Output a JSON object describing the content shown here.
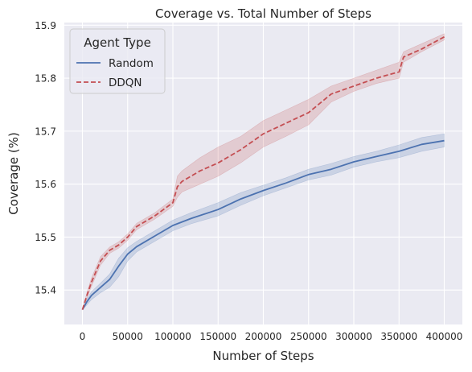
{
  "chart_data": {
    "type": "line",
    "title": "Coverage vs. Total Number of Steps",
    "xlabel": "Number of Steps",
    "ylabel": "Coverage (%)",
    "xlim": [
      -20000,
      420000
    ],
    "ylim": [
      15.335,
      15.905
    ],
    "x_ticks": [
      0,
      50000,
      100000,
      150000,
      200000,
      250000,
      300000,
      350000,
      400000
    ],
    "y_ticks": [
      15.4,
      15.5,
      15.6,
      15.7,
      15.8,
      15.9
    ],
    "grid": true,
    "legend": {
      "title": "Agent Type",
      "placement": "top-left"
    },
    "series": [
      {
        "name": "Random",
        "color": "#4c72b0",
        "linestyle": "solid",
        "x": [
          0,
          5000,
          10000,
          20000,
          30000,
          40000,
          50000,
          60000,
          80000,
          100000,
          120000,
          150000,
          175000,
          200000,
          225000,
          250000,
          275000,
          300000,
          325000,
          350000,
          375000,
          400000
        ],
        "y": [
          15.363,
          15.378,
          15.39,
          15.405,
          15.42,
          15.445,
          15.468,
          15.482,
          15.502,
          15.522,
          15.535,
          15.552,
          15.572,
          15.588,
          15.602,
          15.618,
          15.628,
          15.642,
          15.652,
          15.662,
          15.675,
          15.682
        ],
        "lower": [
          15.363,
          15.372,
          15.382,
          15.395,
          15.405,
          15.425,
          15.455,
          15.472,
          15.492,
          15.512,
          15.525,
          15.54,
          15.56,
          15.578,
          15.593,
          15.608,
          15.617,
          15.632,
          15.642,
          15.65,
          15.662,
          15.67
        ],
        "upper": [
          15.363,
          15.383,
          15.397,
          15.413,
          15.43,
          15.46,
          15.48,
          15.492,
          15.512,
          15.532,
          15.546,
          15.565,
          15.584,
          15.598,
          15.612,
          15.628,
          15.639,
          15.652,
          15.662,
          15.674,
          15.688,
          15.695
        ]
      },
      {
        "name": "DDQN",
        "color": "#c44e52",
        "linestyle": "dashed",
        "x": [
          0,
          5000,
          10000,
          20000,
          30000,
          40000,
          50000,
          60000,
          80000,
          100000,
          105000,
          110000,
          130000,
          150000,
          175000,
          200000,
          225000,
          250000,
          275000,
          300000,
          325000,
          350000,
          355000,
          375000,
          400000
        ],
        "y": [
          15.363,
          15.39,
          15.415,
          15.455,
          15.475,
          15.485,
          15.5,
          15.52,
          15.54,
          15.565,
          15.595,
          15.605,
          15.625,
          15.64,
          15.665,
          15.695,
          15.715,
          15.735,
          15.77,
          15.785,
          15.8,
          15.812,
          15.84,
          15.855,
          15.878
        ],
        "lower": [
          15.363,
          15.385,
          15.407,
          15.447,
          15.469,
          15.479,
          15.494,
          15.514,
          15.534,
          15.558,
          15.575,
          15.585,
          15.6,
          15.615,
          15.64,
          15.67,
          15.69,
          15.712,
          15.755,
          15.775,
          15.79,
          15.8,
          15.83,
          15.85,
          15.872
        ],
        "upper": [
          15.363,
          15.395,
          15.423,
          15.463,
          15.481,
          15.491,
          15.506,
          15.526,
          15.546,
          15.572,
          15.615,
          15.625,
          15.65,
          15.67,
          15.69,
          15.72,
          15.74,
          15.76,
          15.785,
          15.8,
          15.815,
          15.83,
          15.85,
          15.865,
          15.884
        ]
      }
    ]
  }
}
